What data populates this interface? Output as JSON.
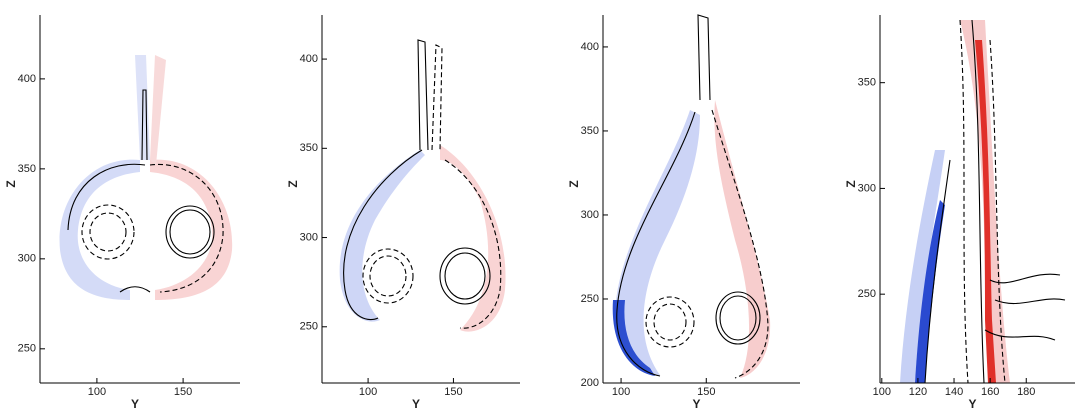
{
  "chart_data": [
    {
      "type": "contour",
      "x_label": "Y",
      "y_label": "Z",
      "xlim": [
        67,
        183
      ],
      "ylim": [
        231,
        435.5
      ],
      "xticks": [
        100,
        150
      ],
      "yticks": [
        250,
        300,
        350,
        400
      ]
    },
    {
      "type": "contour",
      "x_label": "Y",
      "y_label": "Z",
      "xlim": [
        73,
        189
      ],
      "ylim": [
        218.5,
        424.7
      ],
      "xticks": [
        100,
        150
      ],
      "yticks": [
        250,
        300,
        350,
        400
      ]
    },
    {
      "type": "contour",
      "x_label": "Y",
      "y_label": "Z",
      "xlim": [
        89.4,
        205
      ],
      "ylim": [
        200,
        419
      ],
      "xticks": [
        100,
        150
      ],
      "yticks": [
        200,
        250,
        300,
        350,
        400
      ]
    },
    {
      "type": "contour",
      "x_label": "Y",
      "y_label": "Z",
      "xlim": [
        99,
        207
      ],
      "ylim": [
        208,
        382
      ],
      "xticks": [
        100,
        120,
        140,
        160,
        180
      ],
      "yticks": [
        250,
        300,
        350
      ]
    }
  ]
}
